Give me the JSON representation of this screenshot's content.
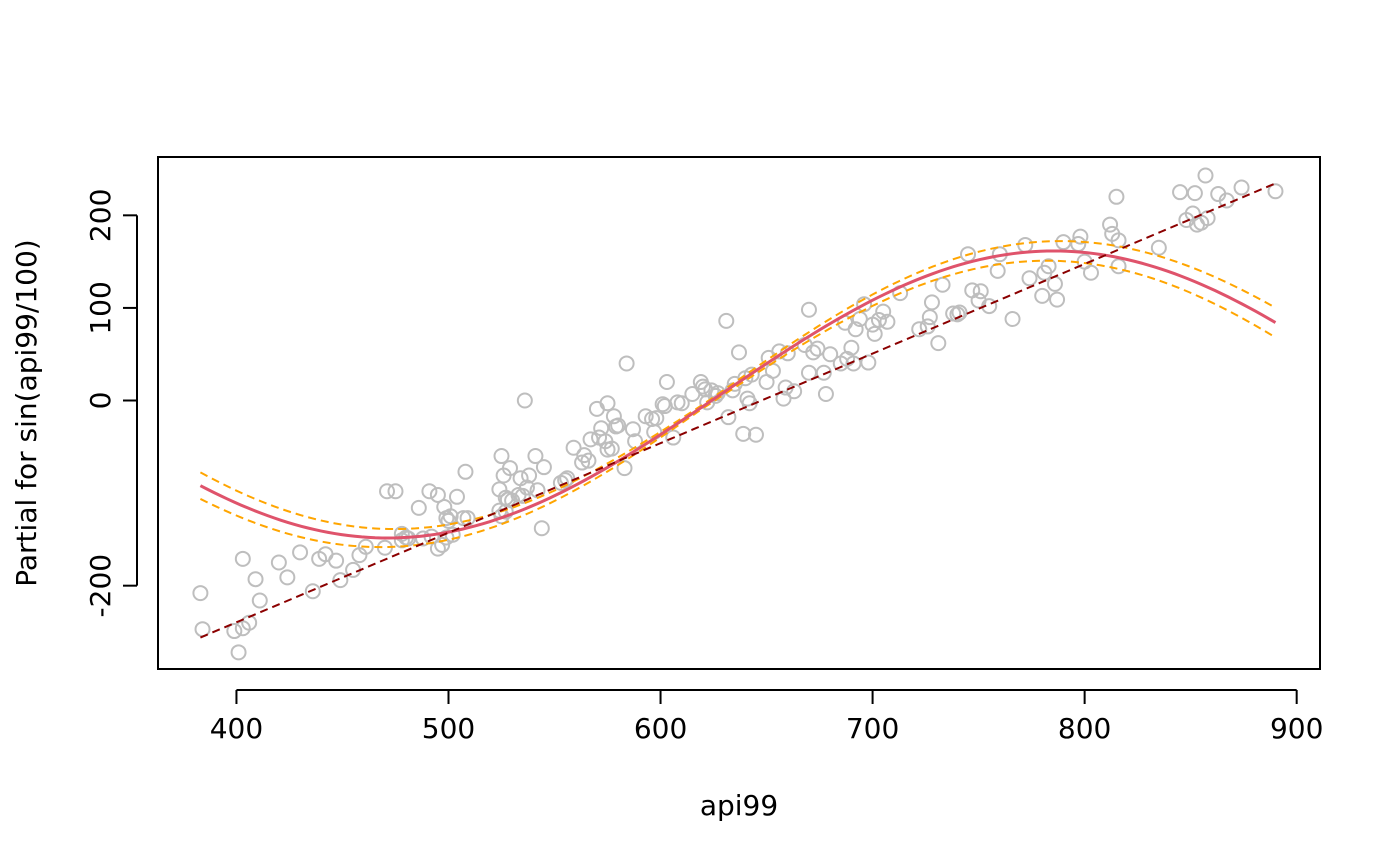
{
  "chart_data": {
    "type": "scatter",
    "title": "",
    "xlabel": "api99",
    "ylabel": "Partial for sin(api99/100)",
    "xlim": [
      363,
      911
    ],
    "ylim": [
      -290,
      263
    ],
    "xticks": [
      400,
      500,
      600,
      700,
      800,
      900
    ],
    "yticks": [
      -200,
      0,
      100,
      200
    ],
    "ytick_labels_shown": [
      "-200",
      "0",
      "100",
      "200"
    ],
    "grid": false,
    "legend": "none",
    "colors": {
      "points": "#bebebe",
      "fit": "#df536b",
      "band": "#ffa500",
      "linear": "#8b0000"
    },
    "points": [
      [
        383,
        -208
      ],
      [
        384,
        -247
      ],
      [
        399,
        -249
      ],
      [
        401,
        -272
      ],
      [
        403,
        -171
      ],
      [
        403,
        -246
      ],
      [
        406,
        -240
      ],
      [
        409,
        -193
      ],
      [
        411,
        -216
      ],
      [
        420,
        -175
      ],
      [
        424,
        -191
      ],
      [
        430,
        -164
      ],
      [
        436,
        -206
      ],
      [
        439,
        -171
      ],
      [
        442,
        -166
      ],
      [
        447,
        -173
      ],
      [
        449,
        -194
      ],
      [
        455,
        -183
      ],
      [
        458,
        -167
      ],
      [
        461,
        -158
      ],
      [
        470,
        -159
      ],
      [
        471,
        -98
      ],
      [
        475,
        -98
      ],
      [
        478,
        -151
      ],
      [
        478,
        -144
      ],
      [
        480,
        -148
      ],
      [
        481,
        -149
      ],
      [
        486,
        -116
      ],
      [
        488,
        -149
      ],
      [
        491,
        -98
      ],
      [
        492,
        -147
      ],
      [
        495,
        -160
      ],
      [
        495,
        -102
      ],
      [
        497,
        -156
      ],
      [
        498,
        -115
      ],
      [
        499,
        -127
      ],
      [
        499,
        -148
      ],
      [
        500,
        -130
      ],
      [
        501,
        -125
      ],
      [
        502,
        -145
      ],
      [
        504,
        -104
      ],
      [
        507,
        -127
      ],
      [
        508,
        -77
      ],
      [
        509,
        -127
      ],
      [
        524,
        -96
      ],
      [
        524,
        -119
      ],
      [
        525,
        -60
      ],
      [
        525,
        -125
      ],
      [
        526,
        -81
      ],
      [
        527,
        -120
      ],
      [
        527,
        -105
      ],
      [
        528,
        -107
      ],
      [
        529,
        -73
      ],
      [
        530,
        -108
      ],
      [
        533,
        -102
      ],
      [
        534,
        -84
      ],
      [
        535,
        -103
      ],
      [
        536,
        0
      ],
      [
        537,
        -94
      ],
      [
        538,
        -81
      ],
      [
        541,
        -60
      ],
      [
        542,
        -97
      ],
      [
        544,
        -138
      ],
      [
        545,
        -72
      ],
      [
        553,
        -89
      ],
      [
        555,
        -86
      ],
      [
        556,
        -84
      ],
      [
        559,
        -51
      ],
      [
        563,
        -67
      ],
      [
        564,
        -59
      ],
      [
        566,
        -65
      ],
      [
        567,
        -42
      ],
      [
        570,
        -9
      ],
      [
        571,
        -40
      ],
      [
        572,
        -30
      ],
      [
        574,
        -44
      ],
      [
        575,
        -53
      ],
      [
        575,
        -3
      ],
      [
        577,
        -52
      ],
      [
        578,
        -17
      ],
      [
        579,
        -28
      ],
      [
        580,
        -27
      ],
      [
        583,
        -73
      ],
      [
        584,
        40
      ],
      [
        587,
        -31
      ],
      [
        588,
        -44
      ],
      [
        593,
        -17
      ],
      [
        596,
        -20
      ],
      [
        597,
        -34
      ],
      [
        598,
        -19
      ],
      [
        601,
        -4
      ],
      [
        602,
        -6
      ],
      [
        603,
        20
      ],
      [
        606,
        -40
      ],
      [
        608,
        -2
      ],
      [
        610,
        -3
      ],
      [
        615,
        7
      ],
      [
        619,
        20
      ],
      [
        620,
        15
      ],
      [
        621,
        12
      ],
      [
        622,
        -2
      ],
      [
        624,
        11
      ],
      [
        626,
        5
      ],
      [
        627,
        8
      ],
      [
        631,
        86
      ],
      [
        632,
        -18
      ],
      [
        634,
        11
      ],
      [
        635,
        18
      ],
      [
        637,
        52
      ],
      [
        639,
        -36
      ],
      [
        640,
        24
      ],
      [
        641,
        2
      ],
      [
        642,
        -3
      ],
      [
        643,
        28
      ],
      [
        645,
        -37
      ],
      [
        650,
        20
      ],
      [
        651,
        46
      ],
      [
        653,
        32
      ],
      [
        656,
        53
      ],
      [
        658,
        2
      ],
      [
        659,
        14
      ],
      [
        660,
        51
      ],
      [
        663,
        10
      ],
      [
        668,
        60
      ],
      [
        670,
        30
      ],
      [
        670,
        98
      ],
      [
        672,
        52
      ],
      [
        674,
        56
      ],
      [
        677,
        30
      ],
      [
        678,
        7
      ],
      [
        680,
        50
      ],
      [
        685,
        40
      ],
      [
        687,
        84
      ],
      [
        688,
        45
      ],
      [
        690,
        57
      ],
      [
        691,
        40
      ],
      [
        692,
        77
      ],
      [
        694,
        88
      ],
      [
        696,
        104
      ],
      [
        698,
        41
      ],
      [
        700,
        82
      ],
      [
        701,
        72
      ],
      [
        703,
        87
      ],
      [
        705,
        96
      ],
      [
        707,
        85
      ],
      [
        713,
        116
      ],
      [
        722,
        77
      ],
      [
        726,
        80
      ],
      [
        727,
        90
      ],
      [
        728,
        106
      ],
      [
        731,
        62
      ],
      [
        733,
        125
      ],
      [
        738,
        94
      ],
      [
        740,
        93
      ],
      [
        741,
        95
      ],
      [
        745,
        158
      ],
      [
        747,
        119
      ],
      [
        750,
        108
      ],
      [
        751,
        118
      ],
      [
        755,
        102
      ],
      [
        759,
        140
      ],
      [
        760,
        158
      ],
      [
        766,
        88
      ],
      [
        772,
        168
      ],
      [
        774,
        132
      ],
      [
        780,
        113
      ],
      [
        781,
        138
      ],
      [
        783,
        145
      ],
      [
        786,
        126
      ],
      [
        787,
        109
      ],
      [
        790,
        171
      ],
      [
        797,
        169
      ],
      [
        798,
        177
      ],
      [
        800,
        150
      ],
      [
        803,
        138
      ],
      [
        812,
        190
      ],
      [
        813,
        180
      ],
      [
        815,
        220
      ],
      [
        816,
        173
      ],
      [
        816,
        145
      ],
      [
        835,
        165
      ],
      [
        845,
        225
      ],
      [
        848,
        195
      ],
      [
        851,
        202
      ],
      [
        852,
        224
      ],
      [
        853,
        190
      ],
      [
        855,
        192
      ],
      [
        857,
        243
      ],
      [
        858,
        197
      ],
      [
        863,
        223
      ],
      [
        867,
        216
      ],
      [
        874,
        230
      ],
      [
        890,
        226
      ]
    ]
  }
}
